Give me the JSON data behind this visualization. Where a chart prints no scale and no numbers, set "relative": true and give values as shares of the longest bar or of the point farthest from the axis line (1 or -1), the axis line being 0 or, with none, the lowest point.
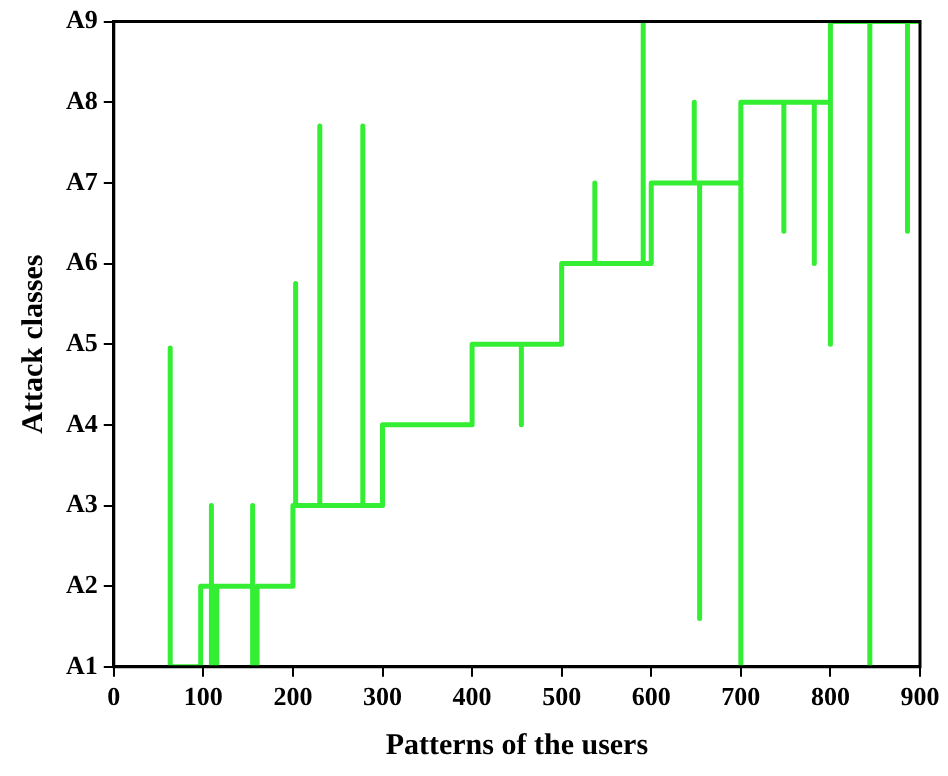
{
  "chart_data": {
    "type": "line",
    "xlabel": "Patterns of the users",
    "ylabel": "Attack classes",
    "xlim": [
      0,
      900
    ],
    "xticks": [
      0,
      100,
      200,
      300,
      400,
      500,
      600,
      700,
      800,
      900
    ],
    "relative": true,
    "annotations": [
      "A1",
      "A2",
      "A3",
      "A4",
      "A5",
      "A6",
      "A7",
      "A8",
      "A9"
    ],
    "grid": false,
    "legend": false,
    "marker": "none",
    "line_style": "solid",
    "series": [
      {
        "color": "#33ee33",
        "x": [
          63,
          63,
          63,
          97,
          97,
          109,
          109,
          109,
          112,
          112,
          115,
          115,
          115,
          155,
          155,
          155,
          160,
          160,
          200,
          200,
          203,
          203,
          203,
          230,
          230,
          230,
          278,
          278,
          278,
          300,
          300,
          400,
          400,
          455,
          455,
          455,
          500,
          500,
          537,
          537,
          537,
          591,
          591,
          591,
          600,
          600,
          648,
          648,
          648,
          654,
          654,
          654,
          700,
          700,
          700,
          748,
          748,
          748,
          782,
          782,
          782,
          800,
          800,
          800,
          844,
          844,
          844,
          886,
          886,
          886,
          900
        ],
        "values": [
          0,
          0.494,
          0,
          0,
          0.125,
          0.125,
          0.25,
          0,
          0,
          0.125,
          0.125,
          0,
          0.125,
          0.125,
          0.25,
          0,
          0,
          0.125,
          0.125,
          0.25,
          0.25,
          0.594,
          0.25,
          0.25,
          0.838,
          0.25,
          0.25,
          0.838,
          0.25,
          0.25,
          0.375,
          0.375,
          0.5,
          0.5,
          0.375,
          0.5,
          0.5,
          0.625,
          0.625,
          0.75,
          0.625,
          0.625,
          1,
          0.625,
          0.625,
          0.75,
          0.75,
          0.875,
          0.75,
          0.75,
          0.075,
          0.75,
          0.75,
          0,
          0.875,
          0.875,
          0.675,
          0.875,
          0.875,
          0.625,
          0.875,
          0.875,
          0.5,
          1,
          1,
          0,
          1,
          1,
          0.675,
          1,
          1
        ]
      }
    ]
  }
}
